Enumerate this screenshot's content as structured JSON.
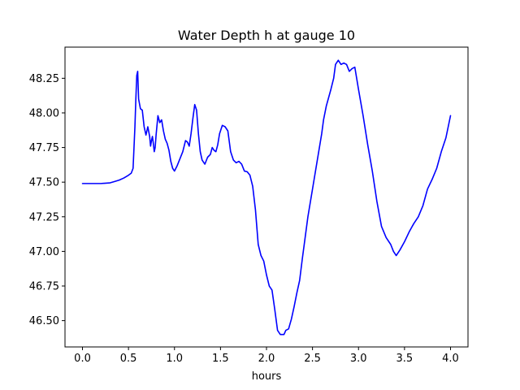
{
  "chart_data": {
    "type": "line",
    "title": "Water Depth h at gauge 10",
    "xlabel": "hours",
    "ylabel": "",
    "xlim": [
      -0.19,
      4.19
    ],
    "ylim": [
      46.31,
      48.475
    ],
    "xticks": [
      0.0,
      0.5,
      1.0,
      1.5,
      2.0,
      2.5,
      3.0,
      3.5,
      4.0
    ],
    "xtick_labels": [
      "0.0",
      "0.5",
      "1.0",
      "1.5",
      "2.0",
      "2.5",
      "3.0",
      "3.5",
      "4.0"
    ],
    "yticks": [
      46.5,
      46.75,
      47.0,
      47.25,
      47.5,
      47.75,
      48.0,
      48.25
    ],
    "ytick_labels": [
      "46.50",
      "46.75",
      "47.00",
      "47.25",
      "47.50",
      "47.75",
      "48.00",
      "48.25"
    ],
    "grid": false,
    "series": [
      {
        "color": "#0000ff",
        "x": [
          0.0,
          0.1,
          0.2,
          0.3,
          0.35,
          0.4,
          0.45,
          0.5,
          0.53,
          0.55,
          0.57,
          0.58,
          0.59,
          0.6,
          0.61,
          0.63,
          0.65,
          0.67,
          0.69,
          0.71,
          0.73,
          0.74,
          0.75,
          0.76,
          0.77,
          0.78,
          0.79,
          0.8,
          0.82,
          0.84,
          0.86,
          0.88,
          0.9,
          0.92,
          0.94,
          0.96,
          0.98,
          1.0,
          1.03,
          1.06,
          1.09,
          1.12,
          1.14,
          1.16,
          1.18,
          1.2,
          1.22,
          1.24,
          1.26,
          1.28,
          1.3,
          1.33,
          1.36,
          1.39,
          1.41,
          1.43,
          1.45,
          1.47,
          1.49,
          1.52,
          1.55,
          1.58,
          1.61,
          1.64,
          1.67,
          1.7,
          1.73,
          1.76,
          1.79,
          1.82,
          1.85,
          1.88,
          1.91,
          1.94,
          1.97,
          2.0,
          2.03,
          2.06,
          2.09,
          2.12,
          2.15,
          2.17,
          2.19,
          2.21,
          2.24,
          2.27,
          2.3,
          2.33,
          2.36,
          2.39,
          2.42,
          2.45,
          2.5,
          2.55,
          2.6,
          2.62,
          2.65,
          2.7,
          2.73,
          2.75,
          2.78,
          2.81,
          2.84,
          2.87,
          2.9,
          2.93,
          2.96,
          3.0,
          3.05,
          3.1,
          3.15,
          3.2,
          3.25,
          3.3,
          3.35,
          3.38,
          3.41,
          3.45,
          3.5,
          3.55,
          3.6,
          3.65,
          3.7,
          3.75,
          3.8,
          3.85,
          3.9,
          3.95,
          4.0
        ],
        "y": [
          47.49,
          47.49,
          47.49,
          47.495,
          47.505,
          47.515,
          47.53,
          47.55,
          47.565,
          47.6,
          47.9,
          48.1,
          48.27,
          48.3,
          48.1,
          48.03,
          48.02,
          47.9,
          47.84,
          47.9,
          47.83,
          47.76,
          47.8,
          47.83,
          47.78,
          47.72,
          47.75,
          47.84,
          47.98,
          47.93,
          47.95,
          47.87,
          47.81,
          47.78,
          47.73,
          47.65,
          47.6,
          47.58,
          47.62,
          47.67,
          47.72,
          47.8,
          47.79,
          47.76,
          47.85,
          47.96,
          48.06,
          48.02,
          47.85,
          47.72,
          47.66,
          47.63,
          47.68,
          47.7,
          47.75,
          47.73,
          47.72,
          47.77,
          47.85,
          47.91,
          47.9,
          47.87,
          47.72,
          47.66,
          47.64,
          47.65,
          47.63,
          47.58,
          47.575,
          47.55,
          47.47,
          47.3,
          47.05,
          46.97,
          46.93,
          46.83,
          46.75,
          46.72,
          46.58,
          46.43,
          46.4,
          46.4,
          46.4,
          46.43,
          46.44,
          46.51,
          46.6,
          46.7,
          46.79,
          46.95,
          47.1,
          47.25,
          47.45,
          47.65,
          47.85,
          47.95,
          48.05,
          48.17,
          48.25,
          48.35,
          48.38,
          48.35,
          48.36,
          48.35,
          48.3,
          48.32,
          48.33,
          48.17,
          47.98,
          47.77,
          47.58,
          47.36,
          47.18,
          47.1,
          47.05,
          47.0,
          46.97,
          47.01,
          47.07,
          47.14,
          47.2,
          47.25,
          47.33,
          47.45,
          47.52,
          47.6,
          47.72,
          47.82,
          47.98
        ]
      }
    ]
  }
}
